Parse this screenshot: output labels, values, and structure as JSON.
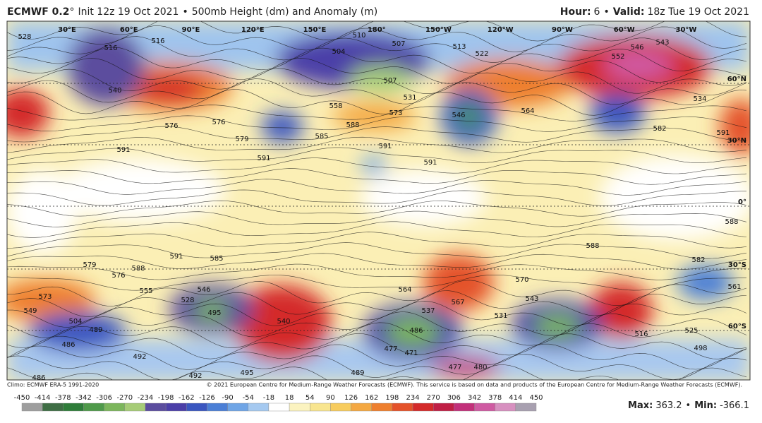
{
  "header": {
    "model": "ECMWF 0.2",
    "degree": "°",
    "init": "Init 12z 19 Oct 2021",
    "separator": "•",
    "product": "500mb Height (dm) and Anomaly (m)",
    "hour_label": "Hour:",
    "hour": 6,
    "separator_right": "•",
    "valid_label": "Valid:",
    "valid": "18z Tue 19 Oct 2021"
  },
  "map": {
    "longitude_labels": [
      "30°E",
      "60°E",
      "90°E",
      "120°E",
      "150°E",
      "180°",
      "150°W",
      "120°W",
      "90°W",
      "60°W",
      "30°W"
    ],
    "latitude_labels": [
      "60°N",
      "30°N",
      "0°",
      "30°S",
      "60°S"
    ],
    "contour_labels": [
      528,
      516,
      516,
      540,
      576,
      576,
      579,
      591,
      591,
      504,
      510,
      507,
      513,
      522,
      507,
      531,
      558,
      573,
      588,
      585,
      591,
      591,
      546,
      564,
      552,
      546,
      543,
      534,
      582,
      591,
      588,
      588,
      582,
      561,
      591,
      585,
      588,
      579,
      576,
      555,
      546,
      528,
      573,
      549,
      504,
      489,
      486,
      495,
      540,
      564,
      567,
      570,
      543,
      537,
      531,
      486,
      471,
      477,
      477,
      480,
      492,
      495,
      489,
      498,
      516,
      525,
      492,
      486
    ]
  },
  "footer": {
    "climo": "Climo: ECMWF ERA-5 1991-2020",
    "copyright": "© 2021 European Centre for Medium-Range Weather Forecasts (ECMWF). This service is based on data and products of the European Centre for Medium-Range Weather Forecasts (ECMWF).",
    "max_label": "Max:",
    "max": 363.2,
    "separator": "•",
    "min_label": "Min:",
    "min": -366.1
  },
  "legend": {
    "ticks": [
      -450,
      -414,
      -378,
      -342,
      -306,
      -270,
      -234,
      -198,
      -162,
      -126,
      -90,
      -54,
      -18,
      18,
      54,
      90,
      126,
      162,
      198,
      234,
      270,
      306,
      342,
      378,
      414,
      450
    ],
    "colors": [
      "#9e9e9e",
      "#3f6e45",
      "#2f7d3a",
      "#4f9a4a",
      "#7cb65c",
      "#a6cc77",
      "#5b4d9e",
      "#4b3fa8",
      "#3a56c0",
      "#4b7fd6",
      "#6fa5e6",
      "#a5c9f0",
      "#ffffff",
      "#fbf3c0",
      "#f8e58f",
      "#f7cc5e",
      "#f4a842",
      "#ee7f2e",
      "#e4522a",
      "#d42a2a",
      "#c01f45",
      "#c2307a",
      "#cf5aa2",
      "#d790c0",
      "#a8a0b0"
    ]
  }
}
